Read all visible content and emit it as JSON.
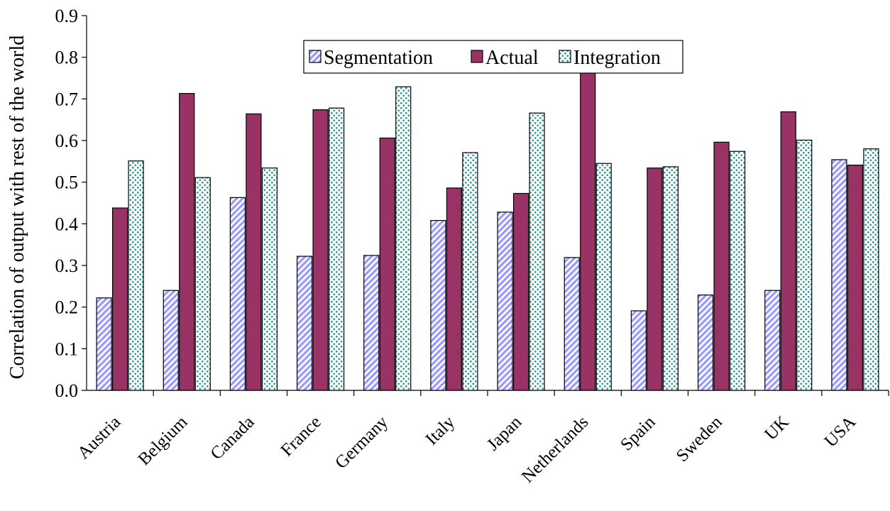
{
  "chart_data": {
    "type": "bar",
    "title": "",
    "xlabel": "",
    "ylabel": "Correlation of output with rest of the world",
    "ylim": [
      0,
      0.9
    ],
    "yticks": [
      "0.0",
      "0.1",
      "0.2",
      "0.3",
      "0.4",
      "0.5",
      "0.6",
      "0.7",
      "0.8",
      "0.9"
    ],
    "grid": false,
    "legend_position": "top-center",
    "categories": [
      "Austria",
      "Belgium",
      "Canada",
      "France",
      "Germany",
      "Italy",
      "Japan",
      "Netherlands",
      "Spain",
      "Sweden",
      "UK",
      "USA"
    ],
    "series": [
      {
        "name": "Segmentation",
        "pattern": "diagonal-stripes",
        "color": "#9999ff",
        "values": [
          0.222,
          0.24,
          0.463,
          0.322,
          0.324,
          0.408,
          0.428,
          0.319,
          0.191,
          0.229,
          0.24,
          0.554
        ]
      },
      {
        "name": "Actual",
        "pattern": "solid",
        "color": "#993366",
        "values": [
          0.438,
          0.713,
          0.664,
          0.674,
          0.606,
          0.486,
          0.473,
          0.775,
          0.534,
          0.596,
          0.669,
          0.541
        ]
      },
      {
        "name": "Integration",
        "pattern": "dotted",
        "color": "#339999",
        "values": [
          0.551,
          0.511,
          0.534,
          0.678,
          0.729,
          0.571,
          0.666,
          0.545,
          0.537,
          0.574,
          0.601,
          0.58
        ]
      }
    ]
  }
}
